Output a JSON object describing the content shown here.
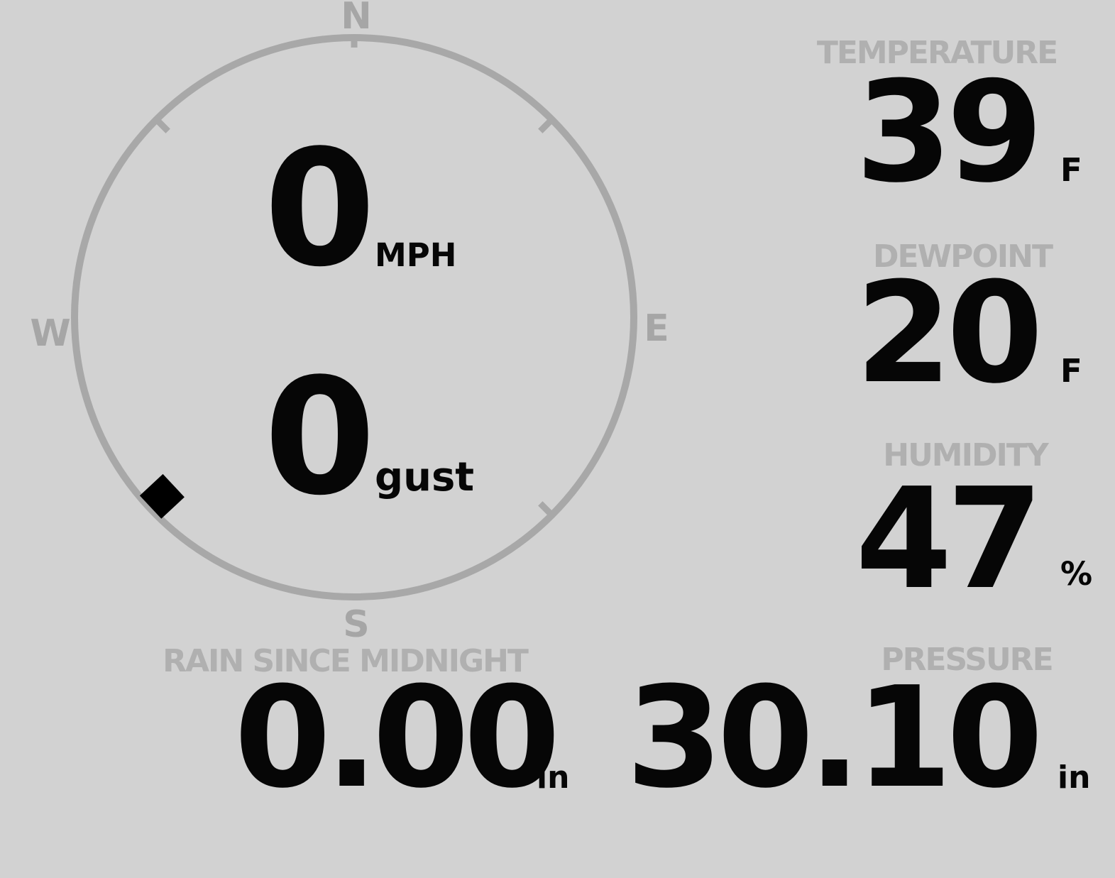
{
  "app": {
    "name": "weather-station-console"
  },
  "colors": {
    "background": "#d2d2d2",
    "dial": "#a8a8a8",
    "dial-label": "#a6a6a6",
    "panel-label": "#b0b0b0",
    "value": "#060606",
    "marker": "#000000"
  },
  "compass": {
    "cardinals": {
      "north": "N",
      "east": "E",
      "south": "S",
      "west": "W"
    },
    "tick_bearings_deg": [
      0,
      45,
      135,
      225,
      315
    ]
  },
  "wind": {
    "speed": "0",
    "speed_unit": "MPH",
    "gust": "0",
    "gust_unit": "gust",
    "direction_deg": 227
  },
  "panels": {
    "temperature": {
      "label": "TEMPERATURE",
      "value": "39",
      "unit": "F"
    },
    "dewpoint": {
      "label": "DEWPOINT",
      "value": "20",
      "unit": "F"
    },
    "humidity": {
      "label": "HUMIDITY",
      "value": "47",
      "unit": "%"
    },
    "rain_since_midnight": {
      "label": "RAIN SINCE MIDNIGHT",
      "value": "0.00",
      "unit": "in"
    },
    "pressure": {
      "label": "PRESSURE",
      "value": "30.10",
      "unit": "in"
    }
  }
}
